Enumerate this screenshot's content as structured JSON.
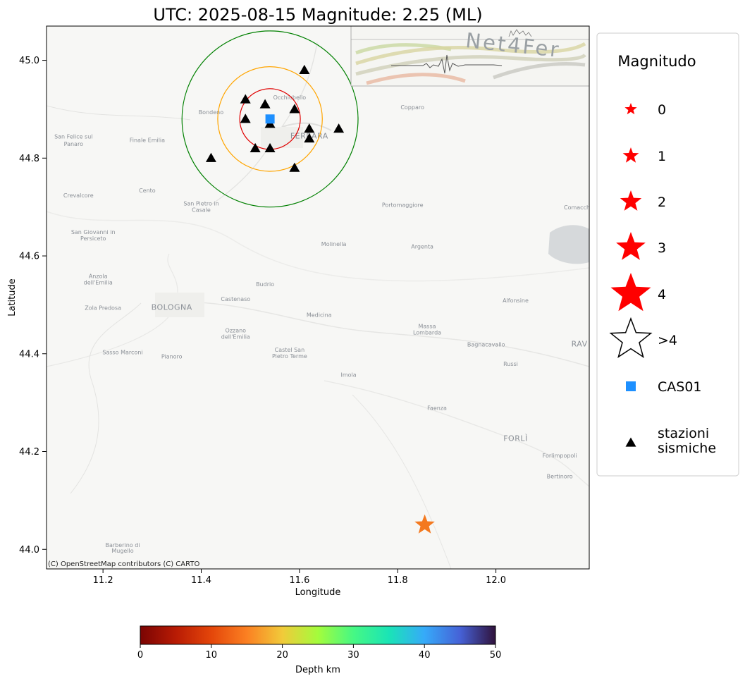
{
  "title": "UTC: 2025-08-15 Magnitude: 2.25 (ML)",
  "map": {
    "xlabel": "Longitude",
    "ylabel": "Latitude",
    "xlim": [
      11.085,
      12.19
    ],
    "ylim": [
      43.96,
      45.07
    ],
    "x_ticks": [
      "11.2",
      "11.4",
      "11.6",
      "11.8",
      "12.0"
    ],
    "y_ticks": [
      "44.0",
      "44.2",
      "44.4",
      "44.6",
      "44.8",
      "45.0"
    ],
    "attribution": "(C) OpenStreetMap contributors (C) CARTO",
    "place_labels": [
      {
        "name": "Occhiobello",
        "lon": 11.58,
        "lat": 44.92
      },
      {
        "name": "Bondeno",
        "lon": 11.42,
        "lat": 44.89
      },
      {
        "name": "Copparo",
        "lon": 11.83,
        "lat": 44.9
      },
      {
        "name": "FERRARA",
        "lon": 11.62,
        "lat": 44.84
      },
      {
        "name": "San Felice sul",
        "lon": 11.14,
        "lat": 44.84
      },
      {
        "name": "Panaro",
        "lon": 11.14,
        "lat": 44.825
      },
      {
        "name": "Finale Emilia",
        "lon": 11.29,
        "lat": 44.833
      },
      {
        "name": "Crevalcore",
        "lon": 11.15,
        "lat": 44.72
      },
      {
        "name": "Cento",
        "lon": 11.29,
        "lat": 44.73
      },
      {
        "name": "San Pietro in",
        "lon": 11.4,
        "lat": 44.703
      },
      {
        "name": "Casale",
        "lon": 11.4,
        "lat": 44.69
      },
      {
        "name": "Portomaggiore",
        "lon": 11.81,
        "lat": 44.7
      },
      {
        "name": "Comacchio",
        "lon": 12.17,
        "lat": 44.695
      },
      {
        "name": "San Giovanni in",
        "lon": 11.18,
        "lat": 44.645
      },
      {
        "name": "Persiceto",
        "lon": 11.18,
        "lat": 44.632
      },
      {
        "name": "Molinella",
        "lon": 11.67,
        "lat": 44.62
      },
      {
        "name": "Argenta",
        "lon": 11.85,
        "lat": 44.615
      },
      {
        "name": "Anzola",
        "lon": 11.19,
        "lat": 44.555
      },
      {
        "name": "dell'Emilia",
        "lon": 11.19,
        "lat": 44.542
      },
      {
        "name": "Budrio",
        "lon": 11.53,
        "lat": 44.538
      },
      {
        "name": "Castenaso",
        "lon": 11.47,
        "lat": 44.508
      },
      {
        "name": "Alfonsine",
        "lon": 12.04,
        "lat": 44.505
      },
      {
        "name": "BOLOGNA",
        "lon": 11.34,
        "lat": 44.49
      },
      {
        "name": "Zola Predosa",
        "lon": 11.2,
        "lat": 44.49
      },
      {
        "name": "Medicina",
        "lon": 11.64,
        "lat": 44.475
      },
      {
        "name": "Ozzano",
        "lon": 11.47,
        "lat": 44.444
      },
      {
        "name": "dell'Emilia",
        "lon": 11.47,
        "lat": 44.431
      },
      {
        "name": "Massa",
        "lon": 11.86,
        "lat": 44.452
      },
      {
        "name": "Lombarda",
        "lon": 11.86,
        "lat": 44.439
      },
      {
        "name": "Bagnacavallo",
        "lon": 11.98,
        "lat": 44.415
      },
      {
        "name": "RAV",
        "lon": 12.17,
        "lat": 44.415
      },
      {
        "name": "Castel San",
        "lon": 11.58,
        "lat": 44.404
      },
      {
        "name": "Pietro Terme",
        "lon": 11.58,
        "lat": 44.391
      },
      {
        "name": "Sasso Marconi",
        "lon": 11.24,
        "lat": 44.399
      },
      {
        "name": "Pianoro",
        "lon": 11.34,
        "lat": 44.39
      },
      {
        "name": "Russi",
        "lon": 12.03,
        "lat": 44.375
      },
      {
        "name": "Imola",
        "lon": 11.7,
        "lat": 44.353
      },
      {
        "name": "Faenza",
        "lon": 11.88,
        "lat": 44.285
      },
      {
        "name": "FORLÌ",
        "lon": 12.04,
        "lat": 44.222
      },
      {
        "name": "Forlimpopoli",
        "lon": 12.13,
        "lat": 44.188
      },
      {
        "name": "Bertinoro",
        "lon": 12.13,
        "lat": 44.145
      },
      {
        "name": "Barberino di",
        "lon": 11.24,
        "lat": 44.005
      },
      {
        "name": "Mugello",
        "lon": 11.24,
        "lat": 43.993
      }
    ]
  },
  "logo": {
    "text": "Net4Fer"
  },
  "chart_data": {
    "type": "scatter",
    "title": "UTC: 2025-08-15 Magnitude: 2.25 (ML)",
    "xlabel": "Longitude",
    "ylabel": "Latitude",
    "xlim": [
      11.085,
      12.19
    ],
    "ylim": [
      43.96,
      45.07
    ],
    "event": {
      "lon": 11.855,
      "lat": 44.05,
      "magnitude": 2.25,
      "magnitude_type": "ML",
      "depth_km": 11,
      "color": "#f4791f",
      "date": "2025-08-15"
    },
    "station": {
      "name": "CAS01",
      "lon": 11.54,
      "lat": 44.88,
      "color": "#1e90ff"
    },
    "seismic_stations": [
      {
        "lon": 11.61,
        "lat": 44.98
      },
      {
        "lon": 11.49,
        "lat": 44.92
      },
      {
        "lon": 11.53,
        "lat": 44.91
      },
      {
        "lon": 11.59,
        "lat": 44.9
      },
      {
        "lon": 11.49,
        "lat": 44.88
      },
      {
        "lon": 11.54,
        "lat": 44.87
      },
      {
        "lon": 11.62,
        "lat": 44.86
      },
      {
        "lon": 11.68,
        "lat": 44.86
      },
      {
        "lon": 11.62,
        "lat": 44.84
      },
      {
        "lon": 11.51,
        "lat": 44.82
      },
      {
        "lon": 11.54,
        "lat": 44.82
      },
      {
        "lon": 11.42,
        "lat": 44.8
      },
      {
        "lon": 11.59,
        "lat": 44.78
      }
    ],
    "circles": [
      {
        "center_lon": 11.54,
        "center_lat": 44.88,
        "radius_deg_lat": 0.062,
        "color": "#e00000"
      },
      {
        "center_lon": 11.54,
        "center_lat": 44.88,
        "radius_deg_lat": 0.107,
        "color": "#ffa500"
      },
      {
        "center_lon": 11.54,
        "center_lat": 44.88,
        "radius_deg_lat": 0.18,
        "color": "#008000"
      }
    ]
  },
  "legend": {
    "title": "Magnitudo",
    "placement": "right",
    "magnitude_entries": [
      "0",
      "1",
      "2",
      "3",
      "4",
      ">4"
    ],
    "station_entry": "CAS01",
    "stations_entry_lines": [
      "stazioni",
      "sismiche"
    ],
    "star_color": "#ff0000"
  },
  "colorbar": {
    "label": "Depth km",
    "range": [
      0,
      50
    ],
    "ticks": [
      "0",
      "10",
      "20",
      "30",
      "40",
      "50"
    ],
    "colormap": "turbo_r"
  }
}
